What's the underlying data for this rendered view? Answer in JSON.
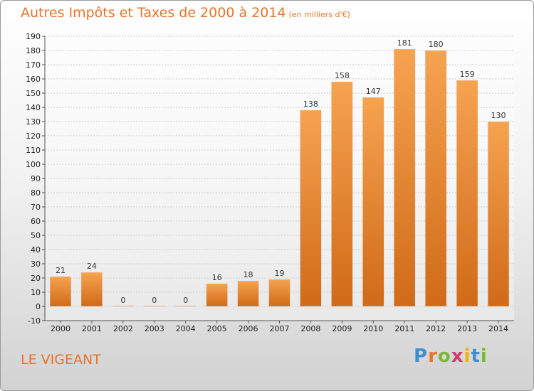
{
  "header": {
    "title": "Autres Impôts et Taxes de 2000 à 2014",
    "unit": "(en milliers d'€)"
  },
  "footer": {
    "commune": "LE VIGEANT",
    "logo": "Proxiti"
  },
  "colors": {
    "bar_top": "#f6a350",
    "bar_bottom": "#d06a18",
    "title": "#e8742a",
    "grid": "#cccccc"
  },
  "chart_data": {
    "type": "bar",
    "title": "Autres Impôts et Taxes de 2000 à 2014",
    "subtitle": "(en milliers d'€)",
    "categories": [
      "2000",
      "2001",
      "2002",
      "2003",
      "2004",
      "2005",
      "2006",
      "2007",
      "2008",
      "2009",
      "2010",
      "2011",
      "2012",
      "2013",
      "2014"
    ],
    "values": [
      21,
      24,
      0,
      0,
      0,
      16,
      18,
      19,
      138,
      158,
      147,
      181,
      180,
      159,
      130
    ],
    "ylim": [
      -10,
      190
    ],
    "yticks": [
      -10,
      0,
      10,
      20,
      30,
      40,
      50,
      60,
      70,
      80,
      90,
      100,
      110,
      120,
      130,
      140,
      150,
      160,
      170,
      180,
      190
    ],
    "grid": true
  }
}
